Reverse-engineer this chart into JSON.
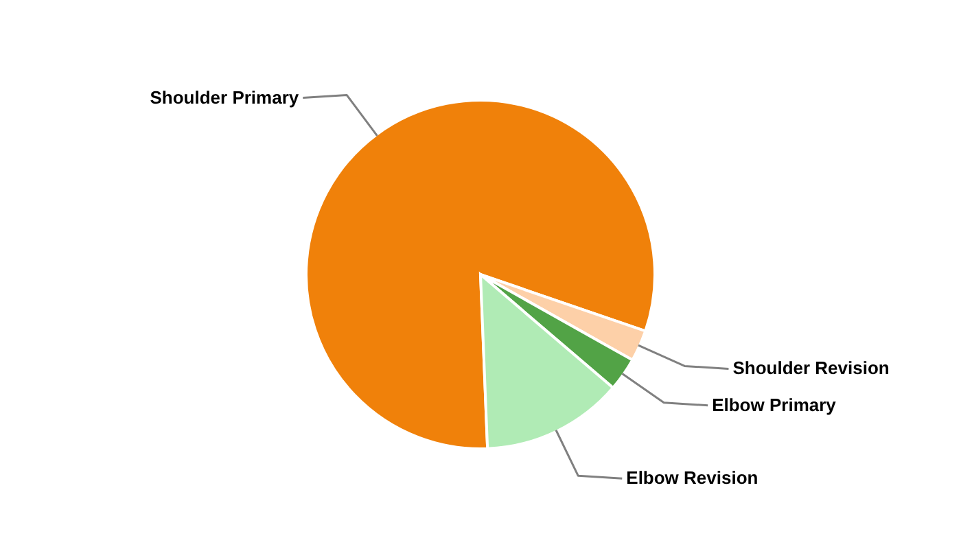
{
  "chart_data": {
    "type": "pie",
    "categories": [
      "Shoulder Primary",
      "Shoulder Revision",
      "Elbow Primary",
      "Elbow Revision"
    ],
    "values": [
      80.9,
      2.9,
      3.1,
      13.1
    ],
    "colors": [
      "#f0810a",
      "#fdd0a8",
      "#52a346",
      "#b0ebb5"
    ]
  }
}
